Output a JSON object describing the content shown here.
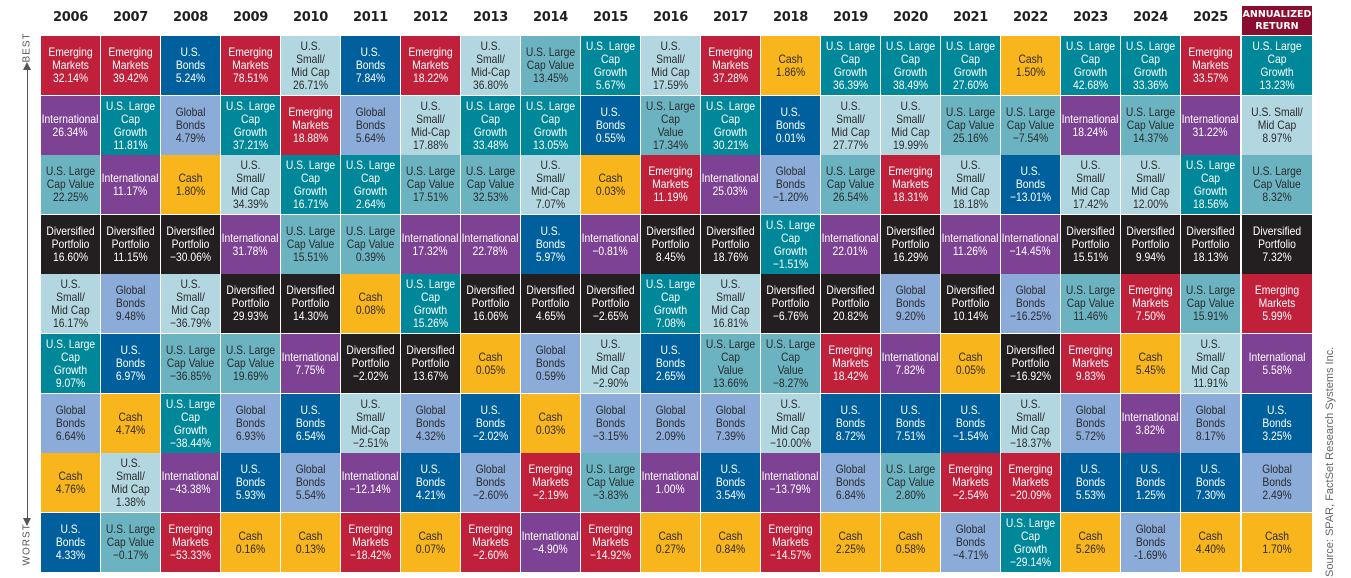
{
  "axis": {
    "best": "BEST",
    "worst": "WORST"
  },
  "source": "Source: SPAR, FactSet Research Systems Inc.",
  "chart_data": {
    "type": "table",
    "annualized_header": "ANNUALIZED\nRETURN",
    "categories": {
      "EM": {
        "label": "Emerging\nMarkets",
        "color": "#c1203b",
        "text": "#ffffff"
      },
      "INT": {
        "label": "International",
        "color": "#7d4294",
        "text": "#ffffff"
      },
      "LCV": {
        "label": "U.S. Large\nCap Value",
        "color": "#6bb3c1",
        "text": "#2b2b2b"
      },
      "LCG": {
        "label": "U.S. Large\nCap\nGrowth",
        "color": "#00889a",
        "text": "#ffffff"
      },
      "DIV": {
        "label": "Diversified\nPortfolio",
        "color": "#231f20",
        "text": "#ffffff"
      },
      "SMID": {
        "label": "U.S. Small/\nMid Cap",
        "color": "#b3d7e1",
        "text": "#2b2b2b"
      },
      "GB": {
        "label": "Global\nBonds",
        "color": "#8bacd9",
        "text": "#2b2b2b"
      },
      "CASH": {
        "label": "Cash",
        "color": "#f9b51c",
        "text": "#2b2b2b"
      },
      "USB": {
        "label": "U.S.\nBonds",
        "color": "#00609d",
        "text": "#ffffff"
      }
    },
    "columns": [
      {
        "year": "2006",
        "cells": [
          {
            "c": "EM",
            "v": "32.14%"
          },
          {
            "c": "INT",
            "v": "26.34%"
          },
          {
            "c": "LCV",
            "v": "22.25%"
          },
          {
            "c": "DIV",
            "v": "16.60%"
          },
          {
            "c": "SMID",
            "v": "16.17%"
          },
          {
            "c": "LCG",
            "v": "9.07%"
          },
          {
            "c": "GB",
            "v": "6.64%"
          },
          {
            "c": "CASH",
            "v": "4.76%"
          },
          {
            "c": "USB",
            "l": "U.S. Bonds",
            "v": "4.33%"
          }
        ]
      },
      {
        "year": "2007",
        "cells": [
          {
            "c": "EM",
            "v": "39.42%"
          },
          {
            "c": "LCG",
            "v": "11.81%"
          },
          {
            "c": "INT",
            "v": "11.17%"
          },
          {
            "c": "DIV",
            "v": "11.15%"
          },
          {
            "c": "GB",
            "v": "9.48%"
          },
          {
            "c": "USB",
            "l": "U.S. Bonds",
            "v": "6.97%"
          },
          {
            "c": "CASH",
            "v": "4.74%"
          },
          {
            "c": "SMID",
            "v": "1.38%"
          },
          {
            "c": "LCV",
            "v": "−0.17%"
          }
        ]
      },
      {
        "year": "2008",
        "cells": [
          {
            "c": "USB",
            "l": "U.S. Bonds",
            "v": "5.24%"
          },
          {
            "c": "GB",
            "v": "4.79%"
          },
          {
            "c": "CASH",
            "v": "1.80%"
          },
          {
            "c": "DIV",
            "v": "−30.06%"
          },
          {
            "c": "SMID",
            "v": "−36.79%"
          },
          {
            "c": "LCV",
            "v": "−36.85%"
          },
          {
            "c": "LCG",
            "v": "−38.44%"
          },
          {
            "c": "INT",
            "v": "−43.38%"
          },
          {
            "c": "EM",
            "v": "−53.33%"
          }
        ]
      },
      {
        "year": "2009",
        "cells": [
          {
            "c": "EM",
            "v": "78.51%"
          },
          {
            "c": "LCG",
            "v": "37.21%"
          },
          {
            "c": "SMID",
            "v": "34.39%"
          },
          {
            "c": "INT",
            "v": "31.78%"
          },
          {
            "c": "DIV",
            "v": "29.93%"
          },
          {
            "c": "LCV",
            "v": "19.69%"
          },
          {
            "c": "GB",
            "v": "6.93%"
          },
          {
            "c": "USB",
            "v": "5.93%"
          },
          {
            "c": "CASH",
            "v": "0.16%"
          }
        ]
      },
      {
        "year": "2010",
        "cells": [
          {
            "c": "SMID",
            "v": "26.71%"
          },
          {
            "c": "EM",
            "v": "18.88%"
          },
          {
            "c": "LCG",
            "v": "16.71%"
          },
          {
            "c": "LCV",
            "v": "15.51%"
          },
          {
            "c": "DIV",
            "v": "14.30%"
          },
          {
            "c": "INT",
            "v": "7.75%"
          },
          {
            "c": "USB",
            "l": "U.S. Bonds",
            "v": "6.54%"
          },
          {
            "c": "GB",
            "v": "5.54%"
          },
          {
            "c": "CASH",
            "v": "0.13%"
          }
        ]
      },
      {
        "year": "2011",
        "cells": [
          {
            "c": "USB",
            "l": "U.S. Bonds",
            "v": "7.84%"
          },
          {
            "c": "GB",
            "v": "5.64%"
          },
          {
            "c": "LCG",
            "v": "2.64%"
          },
          {
            "c": "LCV",
            "v": "0.39%"
          },
          {
            "c": "CASH",
            "v": "0.08%"
          },
          {
            "c": "DIV",
            "v": "−2.02%"
          },
          {
            "c": "SMID",
            "l": "U.S. Small/\nMid-Cap",
            "v": "−2.51%"
          },
          {
            "c": "INT",
            "v": "−12.14%"
          },
          {
            "c": "EM",
            "v": "−18.42%"
          }
        ]
      },
      {
        "year": "2012",
        "cells": [
          {
            "c": "EM",
            "v": "18.22%"
          },
          {
            "c": "SMID",
            "l": "U.S. Small/\nMid-Cap",
            "v": "17.88%"
          },
          {
            "c": "LCV",
            "v": "17.51%"
          },
          {
            "c": "INT",
            "v": "17.32%"
          },
          {
            "c": "LCG",
            "v": "15.26%"
          },
          {
            "c": "DIV",
            "v": "13.67%"
          },
          {
            "c": "GB",
            "v": "4.32%"
          },
          {
            "c": "USB",
            "v": "4.21%"
          },
          {
            "c": "CASH",
            "v": "0.07%"
          }
        ]
      },
      {
        "year": "2013",
        "cells": [
          {
            "c": "SMID",
            "l": "U.S. Small/\nMid-Cap",
            "v": "36.80%"
          },
          {
            "c": "LCG",
            "v": "33.48%"
          },
          {
            "c": "LCV",
            "v": "32.53%"
          },
          {
            "c": "INT",
            "v": "22.78%"
          },
          {
            "c": "DIV",
            "v": "16.06%"
          },
          {
            "c": "CASH",
            "v": "0.05%"
          },
          {
            "c": "USB",
            "l": "U.S. Bonds",
            "v": "−2.02%"
          },
          {
            "c": "GB",
            "v": "−2.60%"
          },
          {
            "c": "EM",
            "v": "−2.60%"
          }
        ]
      },
      {
        "year": "2014",
        "cells": [
          {
            "c": "LCV",
            "v": "13.45%"
          },
          {
            "c": "LCG",
            "v": "13.05%"
          },
          {
            "c": "SMID",
            "l": "U.S. Small/\nMid-Cap",
            "v": "7.07%"
          },
          {
            "c": "USB",
            "l": "U.S. Bonds",
            "v": "5.97%"
          },
          {
            "c": "DIV",
            "v": "4.65%"
          },
          {
            "c": "GB",
            "v": "0.59%"
          },
          {
            "c": "CASH",
            "v": "0.03%"
          },
          {
            "c": "EM",
            "v": "−2.19%"
          },
          {
            "c": "INT",
            "v": "−4.90%"
          }
        ]
      },
      {
        "year": "2015",
        "cells": [
          {
            "c": "LCG",
            "v": "5.67%"
          },
          {
            "c": "USB",
            "v": "0.55%"
          },
          {
            "c": "CASH",
            "v": "0.03%"
          },
          {
            "c": "INT",
            "v": "−0.81%"
          },
          {
            "c": "DIV",
            "v": "−2.65%"
          },
          {
            "c": "SMID",
            "v": "−2.90%"
          },
          {
            "c": "GB",
            "v": "−3.15%"
          },
          {
            "c": "LCV",
            "v": "−3.83%"
          },
          {
            "c": "EM",
            "v": "−14.92%"
          }
        ]
      },
      {
        "year": "2016",
        "cells": [
          {
            "c": "SMID",
            "v": "17.59%"
          },
          {
            "c": "LCV",
            "l": "U.S. Large\nCap\nValue",
            "v": "17.34%"
          },
          {
            "c": "EM",
            "v": "11.19%"
          },
          {
            "c": "DIV",
            "v": "8.45%"
          },
          {
            "c": "LCG",
            "v": "7.08%"
          },
          {
            "c": "USB",
            "v": "2.65%"
          },
          {
            "c": "GB",
            "v": "2.09%"
          },
          {
            "c": "INT",
            "v": "1.00%"
          },
          {
            "c": "CASH",
            "v": "0.27%"
          }
        ]
      },
      {
        "year": "2017",
        "cells": [
          {
            "c": "EM",
            "v": "37.28%"
          },
          {
            "c": "LCG",
            "v": "30.21%"
          },
          {
            "c": "INT",
            "v": "25.03%"
          },
          {
            "c": "DIV",
            "v": "18.76%"
          },
          {
            "c": "SMID",
            "v": "16.81%"
          },
          {
            "c": "LCV",
            "l": "U.S. Large\nCap\nValue",
            "v": "13.66%"
          },
          {
            "c": "GB",
            "v": "7.39%"
          },
          {
            "c": "USB",
            "v": "3.54%"
          },
          {
            "c": "CASH",
            "v": "0.84%"
          }
        ]
      },
      {
        "year": "2018",
        "cells": [
          {
            "c": "CASH",
            "v": "1.86%"
          },
          {
            "c": "USB",
            "v": "0.01%"
          },
          {
            "c": "GB",
            "v": "−1.20%"
          },
          {
            "c": "LCG",
            "v": "−1.51%"
          },
          {
            "c": "DIV",
            "v": "−6.76%"
          },
          {
            "c": "LCV",
            "l": "U.S. Large\nCap\nValue",
            "v": "−8.27%"
          },
          {
            "c": "SMID",
            "v": "−10.00%"
          },
          {
            "c": "INT",
            "v": "−13.79%"
          },
          {
            "c": "EM",
            "v": "−14.57%"
          }
        ]
      },
      {
        "year": "2019",
        "cells": [
          {
            "c": "LCG",
            "v": "36.39%"
          },
          {
            "c": "SMID",
            "v": "27.77%"
          },
          {
            "c": "LCV",
            "v": "26.54%"
          },
          {
            "c": "INT",
            "v": "22.01%"
          },
          {
            "c": "DIV",
            "v": "20.82%"
          },
          {
            "c": "EM",
            "v": "18.42%"
          },
          {
            "c": "USB",
            "v": "8.72%"
          },
          {
            "c": "GB",
            "v": "6.84%"
          },
          {
            "c": "CASH",
            "v": "2.25%"
          }
        ]
      },
      {
        "year": "2020",
        "cells": [
          {
            "c": "LCG",
            "v": "38.49%"
          },
          {
            "c": "SMID",
            "v": "19.99%"
          },
          {
            "c": "EM",
            "v": "18.31%"
          },
          {
            "c": "DIV",
            "v": "16.29%"
          },
          {
            "c": "GB",
            "v": "9.20%"
          },
          {
            "c": "INT",
            "v": "7.82%"
          },
          {
            "c": "USB",
            "v": "7.51%"
          },
          {
            "c": "LCV",
            "v": "2.80%"
          },
          {
            "c": "CASH",
            "v": "0.58%"
          }
        ]
      },
      {
        "year": "2021",
        "cells": [
          {
            "c": "LCG",
            "v": "27.60%"
          },
          {
            "c": "LCV",
            "v": "25.16%"
          },
          {
            "c": "SMID",
            "v": "18.18%"
          },
          {
            "c": "INT",
            "v": "11.26%"
          },
          {
            "c": "DIV",
            "v": "10.14%"
          },
          {
            "c": "CASH",
            "v": "0.05%"
          },
          {
            "c": "USB",
            "v": "−1.54%"
          },
          {
            "c": "EM",
            "v": "−2.54%"
          },
          {
            "c": "GB",
            "v": "−4.71%"
          }
        ]
      },
      {
        "year": "2022",
        "cells": [
          {
            "c": "CASH",
            "v": "1.50%"
          },
          {
            "c": "LCV",
            "v": "−7.54%"
          },
          {
            "c": "USB",
            "v": "−13.01%"
          },
          {
            "c": "INT",
            "v": "−14.45%"
          },
          {
            "c": "GB",
            "v": "−16.25%"
          },
          {
            "c": "DIV",
            "v": "−16.92%"
          },
          {
            "c": "SMID",
            "v": "−18.37%"
          },
          {
            "c": "EM",
            "v": "−20.09%"
          },
          {
            "c": "LCG",
            "v": "−29.14%"
          }
        ]
      },
      {
        "year": "2023",
        "cells": [
          {
            "c": "LCG",
            "v": "42.68%"
          },
          {
            "c": "INT",
            "v": "18.24%"
          },
          {
            "c": "SMID",
            "v": "17.42%"
          },
          {
            "c": "DIV",
            "v": "15.51%"
          },
          {
            "c": "LCV",
            "v": "11.46%"
          },
          {
            "c": "EM",
            "v": "9.83%"
          },
          {
            "c": "GB",
            "v": "5.72%"
          },
          {
            "c": "USB",
            "v": "5.53%"
          },
          {
            "c": "CASH",
            "v": "5.26%"
          }
        ]
      },
      {
        "year": "2024",
        "cells": [
          {
            "c": "LCG",
            "v": "33.36%"
          },
          {
            "c": "LCV",
            "v": "14.37%"
          },
          {
            "c": "SMID",
            "v": "12.00%"
          },
          {
            "c": "DIV",
            "v": "9.94%"
          },
          {
            "c": "EM",
            "v": "7.50%"
          },
          {
            "c": "CASH",
            "v": "5.45%"
          },
          {
            "c": "INT",
            "v": "3.82%"
          },
          {
            "c": "USB",
            "v": "1.25%"
          },
          {
            "c": "GB",
            "v": "-1.69%"
          }
        ]
      },
      {
        "year": "2025",
        "cells": [
          {
            "c": "EM",
            "v": "33.57%"
          },
          {
            "c": "INT",
            "v": "31.22%"
          },
          {
            "c": "LCG",
            "v": "18.56%"
          },
          {
            "c": "DIV",
            "v": "18.13%"
          },
          {
            "c": "LCV",
            "v": "15.91%"
          },
          {
            "c": "SMID",
            "v": "11.91%"
          },
          {
            "c": "GB",
            "v": "8.17%"
          },
          {
            "c": "USB",
            "v": "7.30%"
          },
          {
            "c": "CASH",
            "v": "4.40%"
          }
        ]
      }
    ],
    "annualized": [
      {
        "c": "LCG",
        "v": "13.23%"
      },
      {
        "c": "SMID",
        "v": "8.97%"
      },
      {
        "c": "LCV",
        "v": "8.32%"
      },
      {
        "c": "DIV",
        "v": "7.32%"
      },
      {
        "c": "EM",
        "v": "5.99%"
      },
      {
        "c": "INT",
        "v": "5.58%"
      },
      {
        "c": "USB",
        "v": "3.25%"
      },
      {
        "c": "GB",
        "v": "2.49%"
      },
      {
        "c": "CASH",
        "v": "1.70%"
      }
    ]
  }
}
